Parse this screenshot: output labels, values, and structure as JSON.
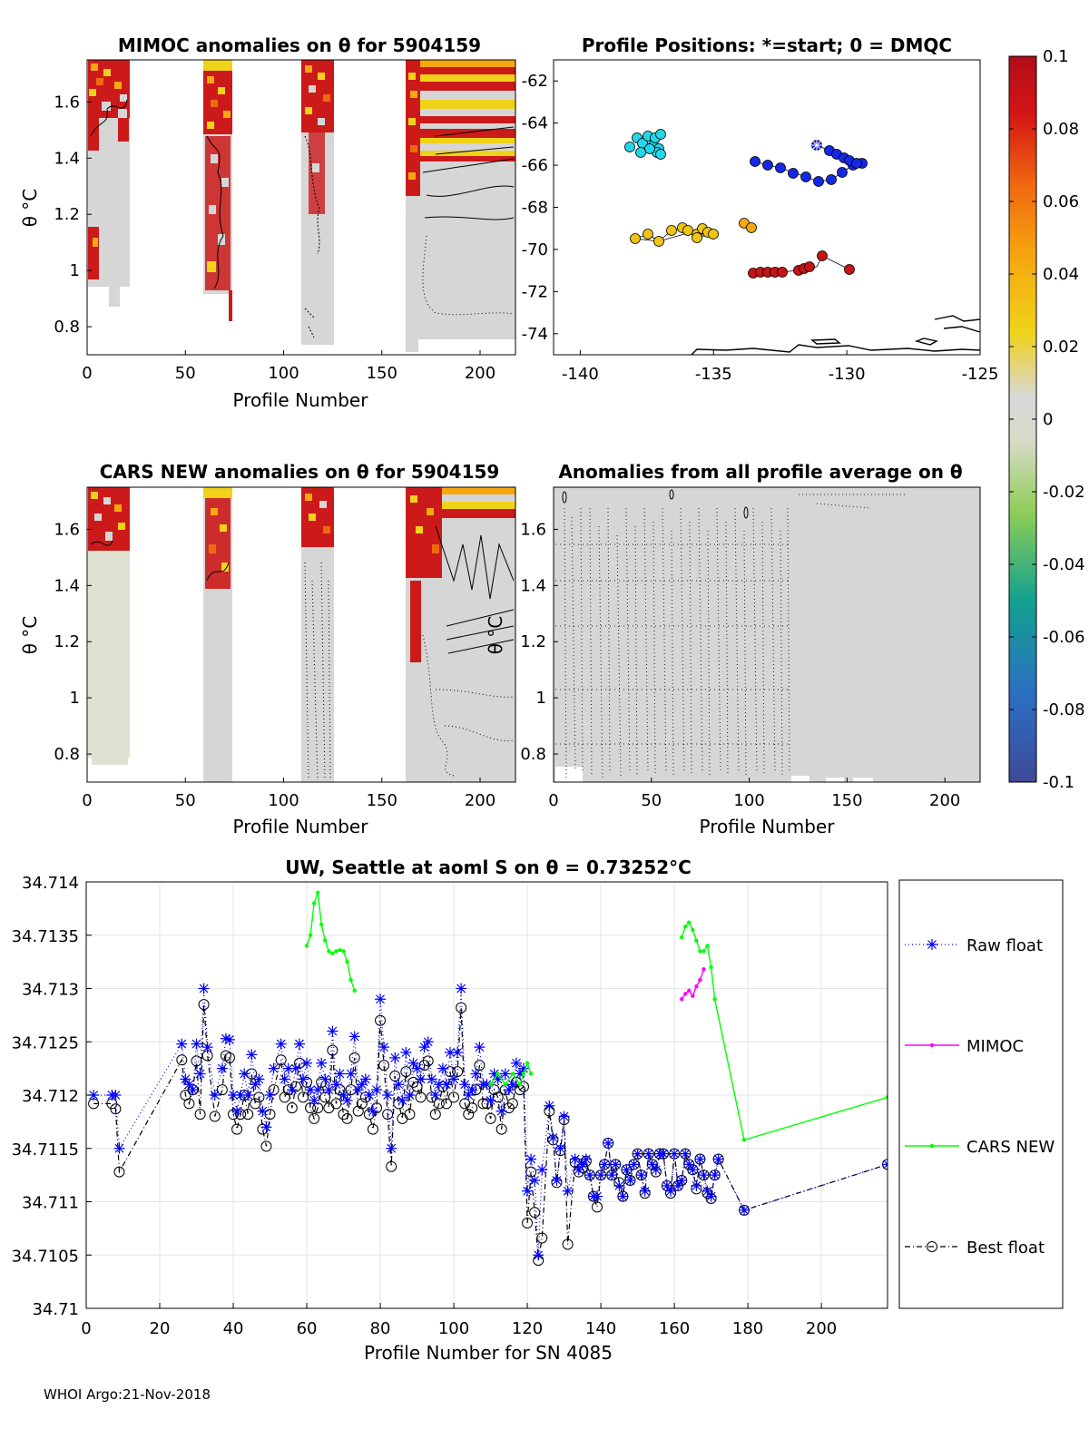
{
  "footer": "WHOI Argo:21-Nov-2018",
  "panels": {
    "mimoc": {
      "title": "MIMOC anomalies on θ  for 5904159",
      "xlabel": "Profile Number",
      "ylabel": "θ °C",
      "xticks": [
        "0",
        "50",
        "100",
        "150",
        "200"
      ],
      "yticks": [
        "0.8",
        "1",
        "1.2",
        "1.4",
        "1.6"
      ]
    },
    "positions": {
      "title": "Profile Positions: *=start; 0 = DMQC",
      "xticks": [
        "-140",
        "-135",
        "-130",
        "-125"
      ],
      "yticks": [
        "-62",
        "-64",
        "-66",
        "-68",
        "-70",
        "-72",
        "-74"
      ]
    },
    "cars": {
      "title": "CARS NEW anomalies on θ for 5904159",
      "xlabel": "Profile Number",
      "ylabel": "θ °C",
      "xticks": [
        "0",
        "50",
        "100",
        "150",
        "200"
      ],
      "yticks": [
        "0.8",
        "1",
        "1.2",
        "1.4",
        "1.6"
      ]
    },
    "allavg": {
      "title": "Anomalies from all profile average on θ",
      "xlabel": "Profile Number",
      "ylabel": "θ °C",
      "xticks": [
        "0",
        "50",
        "100",
        "150",
        "200"
      ],
      "yticks": [
        "0.8",
        "1",
        "1.2",
        "1.4",
        "1.6"
      ]
    }
  },
  "colorbar": {
    "ticks": [
      "0.1",
      "0.08",
      "0.06",
      "0.04",
      "0.02",
      "0",
      "-0.02",
      "-0.04",
      "-0.06",
      "-0.08",
      "-0.1"
    ]
  },
  "chart_data": {
    "type": "line",
    "title": "UW, Seattle at aoml S on θ = 0.73252°C",
    "xlabel": "Profile Number for SN 4085",
    "ylabel": "",
    "xlim": [
      0,
      218
    ],
    "ylim": [
      34.71,
      34.714
    ],
    "xticks": [
      "0",
      "20",
      "40",
      "60",
      "80",
      "100",
      "120",
      "140",
      "160",
      "180",
      "200"
    ],
    "yticks": [
      "34.714",
      "34.7135",
      "34.713",
      "34.7125",
      "34.712",
      "34.7115",
      "34.711",
      "34.7105",
      "34.71"
    ],
    "legend_position": "right",
    "series": [
      {
        "name": "Raw float",
        "color": "#0000ff",
        "x": [
          2,
          7,
          8,
          9,
          26,
          27,
          28,
          29,
          30,
          31,
          32,
          33,
          35,
          37,
          38,
          39,
          40,
          41,
          42,
          43,
          44,
          45,
          46,
          47,
          48,
          49,
          50,
          51,
          53,
          54,
          55,
          56,
          57,
          58,
          59,
          60,
          61,
          62,
          63,
          64,
          65,
          66,
          67,
          68,
          69,
          70,
          71,
          72,
          73,
          74,
          75,
          76,
          77,
          78,
          79,
          80,
          81,
          82,
          83,
          84,
          85,
          86,
          87,
          88,
          89,
          90,
          91,
          92,
          93,
          94,
          95,
          96,
          97,
          98,
          99,
          100,
          101,
          102,
          103,
          104,
          105,
          106,
          107,
          108,
          109,
          110,
          111,
          112,
          113,
          114,
          115,
          116,
          117,
          118,
          119,
          120,
          121,
          122,
          123,
          124,
          126,
          127,
          128,
          129,
          130,
          131,
          133,
          134,
          135,
          136,
          137,
          138,
          139,
          140,
          141,
          142,
          143,
          144,
          145,
          146,
          147,
          148,
          149,
          150,
          151,
          152,
          153,
          154,
          155,
          156,
          157,
          158,
          159,
          160,
          161,
          162,
          163,
          164,
          165,
          166,
          167,
          168,
          169,
          170,
          171,
          172,
          179,
          218
        ],
        "y": [
          34.712,
          34.712,
          34.712,
          34.7115,
          34.71248,
          34.71215,
          34.7121,
          34.71205,
          34.71248,
          34.7122,
          34.713,
          34.71245,
          34.712,
          34.71225,
          34.71253,
          34.71252,
          34.712,
          34.71185,
          34.712,
          34.7122,
          34.712,
          34.71238,
          34.7121,
          34.71215,
          34.71185,
          34.7117,
          34.712,
          34.71225,
          34.71248,
          34.71215,
          34.71225,
          34.71205,
          34.71225,
          34.71248,
          34.71215,
          34.7123,
          34.71205,
          34.71195,
          34.71205,
          34.7123,
          34.71215,
          34.71205,
          34.7126,
          34.7121,
          34.7122,
          34.712,
          34.71195,
          34.7122,
          34.71255,
          34.71205,
          34.7121,
          34.71215,
          34.712,
          34.71185,
          34.71205,
          34.7129,
          34.71245,
          34.712,
          34.7115,
          34.71235,
          34.7121,
          34.71195,
          34.7124,
          34.712,
          34.7123,
          34.71225,
          34.71215,
          34.71245,
          34.7125,
          34.71215,
          34.712,
          34.7121,
          34.71225,
          34.7121,
          34.7124,
          34.71215,
          34.7124,
          34.713,
          34.7121,
          34.712,
          34.71205,
          34.7122,
          34.71245,
          34.7121,
          34.7121,
          34.71195,
          34.7122,
          34.71215,
          34.71185,
          34.7122,
          34.71205,
          34.7121,
          34.7123,
          34.7122,
          34.71225,
          34.7111,
          34.7114,
          34.7112,
          34.7105,
          34.7113,
          34.7119,
          34.7116,
          34.7112,
          34.7115,
          34.7118,
          34.7111,
          34.7114,
          34.7113,
          34.71135,
          34.7114,
          34.71125,
          34.71105,
          34.71105,
          34.71125,
          34.71135,
          34.71155,
          34.71125,
          34.71135,
          34.71115,
          34.71105,
          34.7113,
          34.7112,
          34.71135,
          34.71145,
          34.71125,
          34.7111,
          34.71145,
          34.71135,
          34.7113,
          34.71145,
          34.71145,
          34.71115,
          34.7111,
          34.71145,
          34.71115,
          34.7112,
          34.71145,
          34.71135,
          34.7113,
          34.71115,
          34.7114,
          34.71125,
          34.7111,
          34.71105,
          34.71125,
          34.7114,
          34.71092,
          34.71135
        ]
      },
      {
        "name": "MIMOC",
        "color": "#ff00ff",
        "x": [
          162,
          163,
          164,
          165,
          166,
          167,
          168
        ],
        "y": [
          34.7129,
          34.71295,
          34.71298,
          34.71293,
          34.71302,
          34.71308,
          34.71318
        ]
      },
      {
        "name": "CARS NEW",
        "color": "#00ff00",
        "x": [
          60,
          61,
          62,
          63,
          64,
          65,
          66,
          67,
          68,
          69,
          70,
          71,
          72,
          73,
          110,
          112,
          114,
          116,
          118,
          119,
          120,
          121,
          162,
          163,
          164,
          165,
          166,
          167,
          168,
          169,
          170,
          171,
          179,
          218
        ],
        "y": [
          34.7134,
          34.7135,
          34.7138,
          34.7139,
          34.7136,
          34.71345,
          34.71335,
          34.71333,
          34.71335,
          34.71336,
          34.71335,
          34.71325,
          34.71308,
          34.71298,
          34.7121,
          34.7122,
          34.7121,
          34.7122,
          34.7121,
          34.7122,
          34.7123,
          34.7122,
          34.71348,
          34.71358,
          34.71362,
          34.71355,
          34.71345,
          34.71335,
          34.71335,
          34.7134,
          34.7132,
          34.7129,
          34.71158,
          34.71198
        ]
      },
      {
        "name": "Best float",
        "color": "#000000",
        "x": [
          2,
          7,
          8,
          9,
          26,
          27,
          28,
          29,
          30,
          31,
          32,
          33,
          35,
          37,
          38,
          39,
          40,
          41,
          42,
          43,
          44,
          45,
          46,
          47,
          48,
          49,
          50,
          51,
          53,
          54,
          55,
          56,
          57,
          58,
          59,
          60,
          61,
          62,
          63,
          64,
          65,
          66,
          67,
          68,
          69,
          70,
          71,
          72,
          73,
          74,
          75,
          76,
          77,
          78,
          79,
          80,
          81,
          82,
          83,
          84,
          85,
          86,
          87,
          88,
          89,
          90,
          91,
          92,
          93,
          94,
          95,
          96,
          97,
          98,
          99,
          100,
          101,
          102,
          103,
          104,
          105,
          106,
          107,
          108,
          109,
          110,
          111,
          112,
          113,
          114,
          115,
          116,
          117,
          118,
          119,
          120,
          121,
          122,
          123,
          124,
          126,
          127,
          128,
          129,
          130,
          131,
          133,
          134,
          135,
          136,
          137,
          138,
          139,
          140,
          141,
          142,
          143,
          144,
          145,
          146,
          147,
          148,
          149,
          150,
          151,
          152,
          153,
          154,
          155,
          156,
          157,
          158,
          159,
          160,
          161,
          162,
          163,
          164,
          165,
          166,
          167,
          168,
          169,
          170,
          171,
          172,
          179,
          218
        ],
        "y": [
          34.71192,
          34.71192,
          34.71187,
          34.71128,
          34.71233,
          34.712,
          34.71192,
          34.71205,
          34.71232,
          34.71182,
          34.71285,
          34.71237,
          34.7118,
          34.71205,
          34.71237,
          34.71235,
          34.71182,
          34.71168,
          34.71182,
          34.712,
          34.71182,
          34.7122,
          34.71192,
          34.71198,
          34.71168,
          34.71152,
          34.71182,
          34.71205,
          34.71233,
          34.71198,
          34.71205,
          34.71188,
          34.71208,
          34.7123,
          34.71198,
          34.71212,
          34.71188,
          34.71178,
          34.71188,
          34.71212,
          34.71198,
          34.71188,
          34.71242,
          34.71192,
          34.71205,
          34.71182,
          34.71178,
          34.71205,
          34.71235,
          34.71185,
          34.71192,
          34.71198,
          34.71182,
          34.71168,
          34.71188,
          34.7127,
          34.71228,
          34.71182,
          34.71133,
          34.71218,
          34.71192,
          34.71178,
          34.71222,
          34.71182,
          34.71212,
          34.71208,
          34.71198,
          34.71228,
          34.71232,
          34.71198,
          34.71182,
          34.71192,
          34.71208,
          34.71192,
          34.71222,
          34.71198,
          34.71222,
          34.71282,
          34.71192,
          34.71182,
          34.71188,
          34.71205,
          34.71228,
          34.71192,
          34.71192,
          34.71178,
          34.71205,
          34.71198,
          34.71168,
          34.71205,
          34.71188,
          34.71192,
          34.71212,
          34.71205,
          34.71208,
          34.7108,
          34.71128,
          34.7109,
          34.71045,
          34.71066,
          34.71185,
          34.71158,
          34.71118,
          34.71148,
          34.71177,
          34.7106,
          34.71137,
          34.71128,
          34.71132,
          34.71138,
          34.71125,
          34.71105,
          34.71095,
          34.71125,
          34.71135,
          34.71155,
          34.71125,
          34.71135,
          34.71118,
          34.71105,
          34.7113,
          34.7112,
          34.71135,
          34.71145,
          34.71125,
          34.71108,
          34.71145,
          34.71135,
          34.71128,
          34.71145,
          34.71145,
          34.71115,
          34.71108,
          34.71145,
          34.71115,
          34.7112,
          34.71145,
          34.71135,
          34.7113,
          34.71112,
          34.7114,
          34.71125,
          34.71108,
          34.71103,
          34.71125,
          34.7114,
          34.71092,
          34.71135
        ]
      }
    ]
  }
}
